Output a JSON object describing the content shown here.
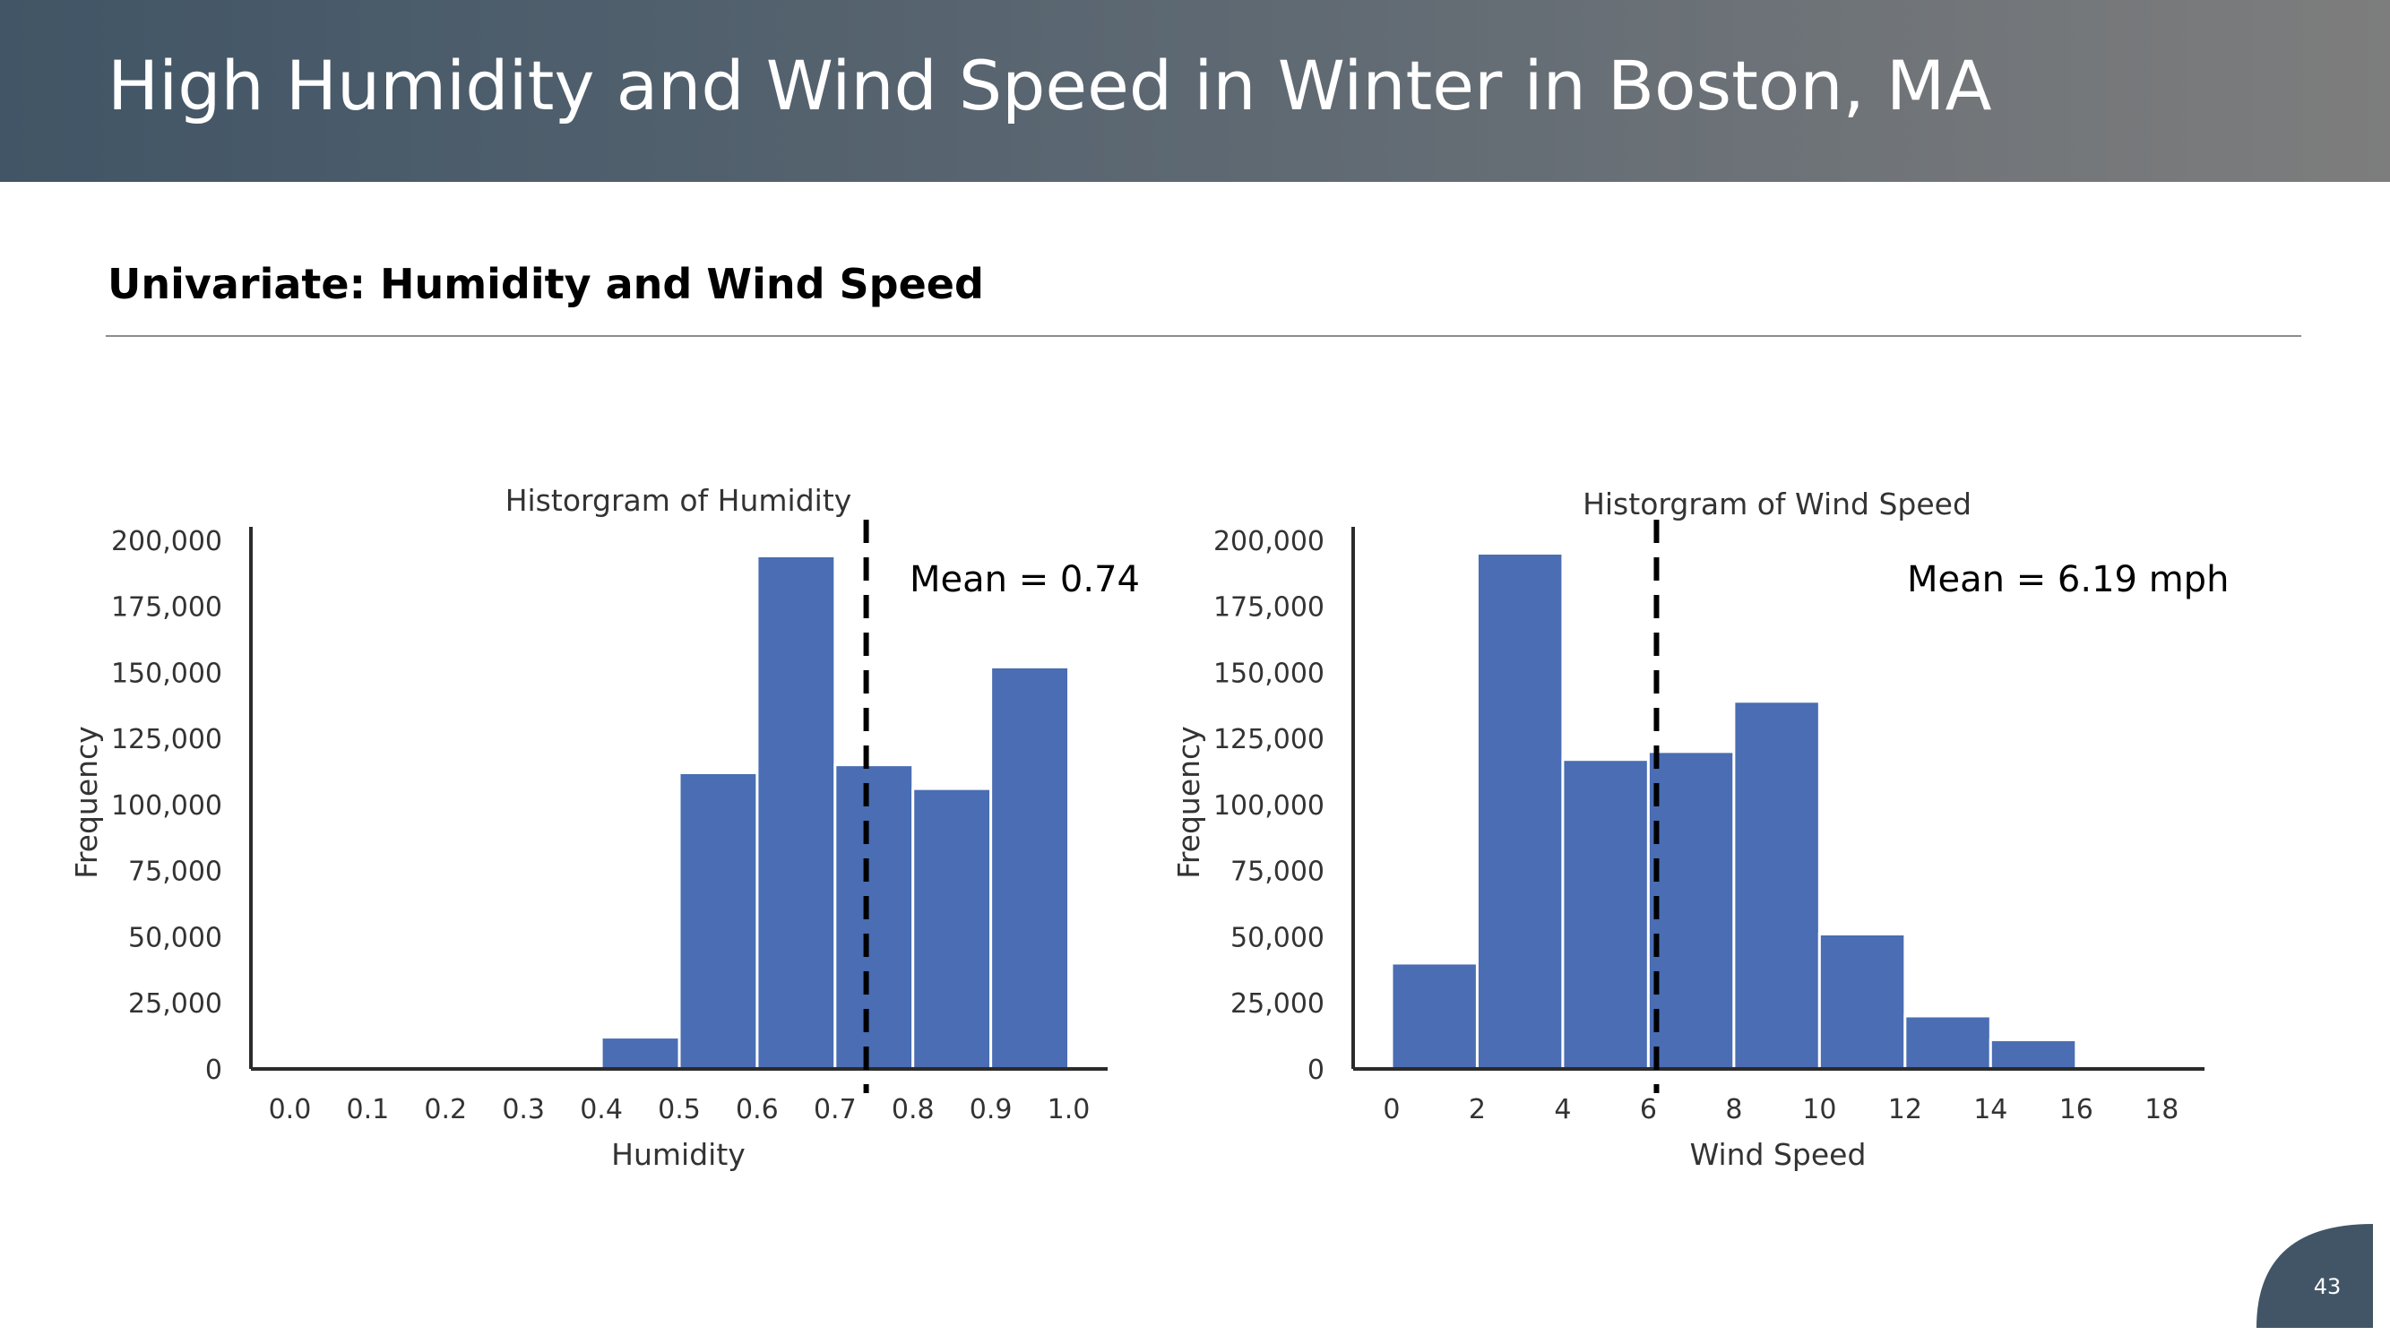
{
  "slide": {
    "title": "High Humidity and Wind Speed in Winter in Boston, MA",
    "subtitle": "Univariate: Humidity and Wind Speed",
    "page_number": "43",
    "header_color": "#415566"
  },
  "chart_data": [
    {
      "type": "bar",
      "title": "Historgram of Humidity",
      "xlabel": "Humidity",
      "ylabel": "Frequency",
      "bar_color": "#4a6db3",
      "xlim": [
        -0.05,
        1.05
      ],
      "ylim": [
        0,
        205000
      ],
      "xticks": [
        0.0,
        0.1,
        0.2,
        0.3,
        0.4,
        0.5,
        0.6,
        0.7,
        0.8,
        0.9,
        1.0
      ],
      "xtick_labels": [
        "0.0",
        "0.1",
        "0.2",
        "0.3",
        "0.4",
        "0.5",
        "0.6",
        "0.7",
        "0.8",
        "0.9",
        "1.0"
      ],
      "yticks": [
        0,
        25000,
        50000,
        75000,
        100000,
        125000,
        150000,
        175000,
        200000
      ],
      "ytick_labels": [
        "0",
        "25,000",
        "50,000",
        "75,000",
        "100,000",
        "125,000",
        "150,000",
        "175,000",
        "200,000"
      ],
      "bins": [
        {
          "x0": 0.4,
          "x1": 0.5,
          "value": 12000
        },
        {
          "x0": 0.5,
          "x1": 0.6,
          "value": 112000
        },
        {
          "x0": 0.6,
          "x1": 0.7,
          "value": 194000
        },
        {
          "x0": 0.7,
          "x1": 0.8,
          "value": 115000
        },
        {
          "x0": 0.8,
          "x1": 0.9,
          "value": 106000
        },
        {
          "x0": 0.9,
          "x1": 1.0,
          "value": 152000
        }
      ],
      "mean": 0.74,
      "mean_label": "Mean = 0.74"
    },
    {
      "type": "bar",
      "title": "Historgram of Wind Speed",
      "xlabel": "Wind Speed",
      "ylabel": "Frequency",
      "bar_color": "#4a6db3",
      "xlim": [
        -0.9,
        19
      ],
      "ylim": [
        0,
        205000
      ],
      "xticks": [
        0,
        2,
        4,
        6,
        8,
        10,
        12,
        14,
        16,
        18
      ],
      "xtick_labels": [
        "0",
        "2",
        "4",
        "6",
        "8",
        "10",
        "12",
        "14",
        "16",
        "18"
      ],
      "yticks": [
        0,
        25000,
        50000,
        75000,
        100000,
        125000,
        150000,
        175000,
        200000
      ],
      "ytick_labels": [
        "0",
        "25,000",
        "50,000",
        "75,000",
        "100,000",
        "125,000",
        "150,000",
        "175,000",
        "200,000"
      ],
      "bins": [
        {
          "x0": 0,
          "x1": 2,
          "value": 40000
        },
        {
          "x0": 2,
          "x1": 4,
          "value": 195000
        },
        {
          "x0": 4,
          "x1": 6,
          "value": 117000
        },
        {
          "x0": 6,
          "x1": 8,
          "value": 120000
        },
        {
          "x0": 8,
          "x1": 10,
          "value": 139000
        },
        {
          "x0": 10,
          "x1": 12,
          "value": 51000
        },
        {
          "x0": 12,
          "x1": 14,
          "value": 20000
        },
        {
          "x0": 14,
          "x1": 16,
          "value": 11000
        }
      ],
      "mean": 6.19,
      "mean_label": "Mean = 6.19 mph"
    }
  ]
}
